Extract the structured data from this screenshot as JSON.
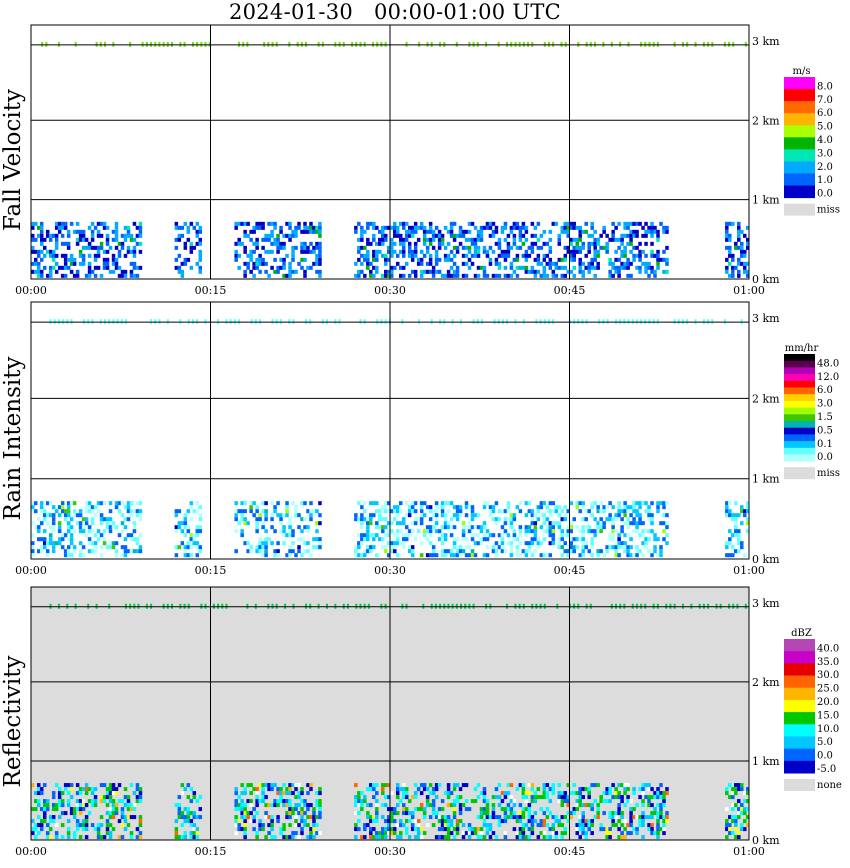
{
  "title": "2024-01-30   00:00-01:00 UTC",
  "chart_data": [
    {
      "type": "heatmap",
      "ylabel": "Fall Velocity",
      "x_ticks": [
        "00:00",
        "00:15",
        "00:30",
        "00:45",
        "01:00"
      ],
      "y_ticks": [
        "0 km",
        "1 km",
        "2 km",
        "3 km"
      ],
      "xlim": [
        "00:00",
        "01:00"
      ],
      "ylim_km": [
        0,
        3.2
      ],
      "grid": true,
      "background": "#ffffff",
      "colorbar": {
        "unit": "m/s",
        "labels": [
          "8.0",
          "7.0",
          "6.0",
          "5.0",
          "4.0",
          "3.0",
          "2.0",
          "1.0",
          "0.0",
          "miss"
        ],
        "colors": [
          "#ff00ff",
          "#ff0000",
          "#ff6a00",
          "#ffb400",
          "#aaff00",
          "#00b400",
          "#00e6b4",
          "#00aaff",
          "#0064ff",
          "#0000c8"
        ],
        "miss_color": "#dcdcdc"
      },
      "echo_top_km": 0.72,
      "layer_km": 2.95
    },
    {
      "type": "heatmap",
      "ylabel": "Rain Intensity",
      "x_ticks": [
        "00:00",
        "00:15",
        "00:30",
        "00:45",
        "01:00"
      ],
      "y_ticks": [
        "0 km",
        "1 km",
        "2 km",
        "3 km"
      ],
      "xlim": [
        "00:00",
        "01:00"
      ],
      "ylim_km": [
        0,
        3.2
      ],
      "grid": true,
      "background": "#ffffff",
      "colorbar": {
        "unit": "mm/hr",
        "labels": [
          "48.0",
          "12.0",
          "6.0",
          "3.0",
          "1.5",
          "0.5",
          "0.1",
          "0.0",
          "miss"
        ],
        "colors": [
          "#000000",
          "#5a0050",
          "#b400b4",
          "#ff00b4",
          "#ff0000",
          "#ff6400",
          "#ffd200",
          "#ffff00",
          "#a0ff00",
          "#3cc800",
          "#00b4b4",
          "#0000c8",
          "#0064ff",
          "#00c8ff",
          "#64ffff",
          "#b4ffff"
        ],
        "miss_color": "#dcdcdc"
      },
      "echo_top_km": 0.72,
      "layer_km": 2.95
    },
    {
      "type": "heatmap",
      "ylabel": "Reflectivity",
      "x_ticks": [
        "00:00",
        "00:15",
        "00:30",
        "00:45",
        "01:00"
      ],
      "y_ticks": [
        "0 km",
        "1 km",
        "2 km",
        "3 km"
      ],
      "xlim": [
        "00:00",
        "01:00"
      ],
      "ylim_km": [
        0,
        3.2
      ],
      "grid": true,
      "background": "#dcdcdc",
      "colorbar": {
        "unit": "dBZ",
        "labels": [
          "40.0",
          "35.0",
          "30.0",
          "25.0",
          "20.0",
          "15.0",
          "10.0",
          "5.0",
          "0.0",
          "-5.0",
          "none"
        ],
        "colors": [
          "#b446b4",
          "#c800c8",
          "#e60000",
          "#ff6400",
          "#ffb400",
          "#ffff00",
          "#00c800",
          "#00ffff",
          "#00c8ff",
          "#0064ff",
          "#0000c8"
        ],
        "miss_color": "#dcdcdc"
      },
      "echo_top_km": 0.72,
      "layer_km": 2.95
    }
  ]
}
